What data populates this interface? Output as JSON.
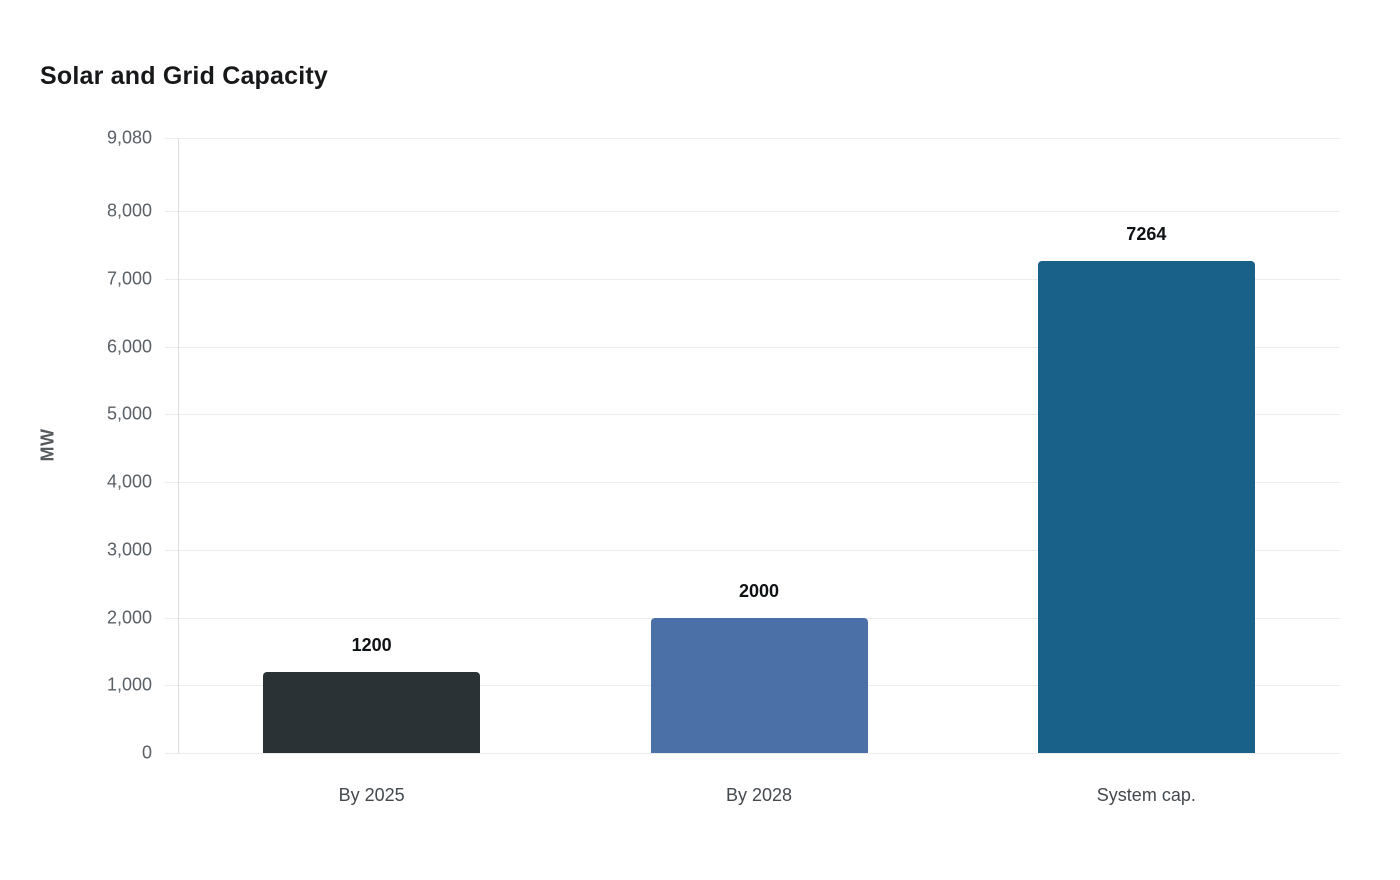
{
  "page": {
    "background_color": "#ffffff"
  },
  "chart_data": {
    "type": "bar",
    "title": "Solar and Grid Capacity",
    "xlabel": "",
    "ylabel": "MW",
    "categories": [
      "By 2025",
      "By 2028",
      "System cap."
    ],
    "values": [
      1200,
      2000,
      7264
    ],
    "value_labels": [
      "1200",
      "2000",
      "7264"
    ],
    "bar_colors": [
      "#2b3236",
      "#4b70a7",
      "#1a6189"
    ],
    "ylim": [
      0,
      9080
    ],
    "yticks": [
      0,
      1000,
      2000,
      3000,
      4000,
      5000,
      6000,
      7000,
      8000,
      9080
    ],
    "ytick_labels": [
      "0",
      "1,000",
      "2,000",
      "3,000",
      "4,000",
      "5,000",
      "6,000",
      "7,000",
      "8,000",
      "9,080"
    ],
    "grid": "horizontal",
    "legend_position": "none",
    "style": {
      "grid_color": "#ececec",
      "axis_line_color": "#dedede",
      "tick_label_color": "#5a6066",
      "category_label_color": "#44494e",
      "value_label_color": "#0f1214",
      "title_color": "#16181a"
    }
  }
}
